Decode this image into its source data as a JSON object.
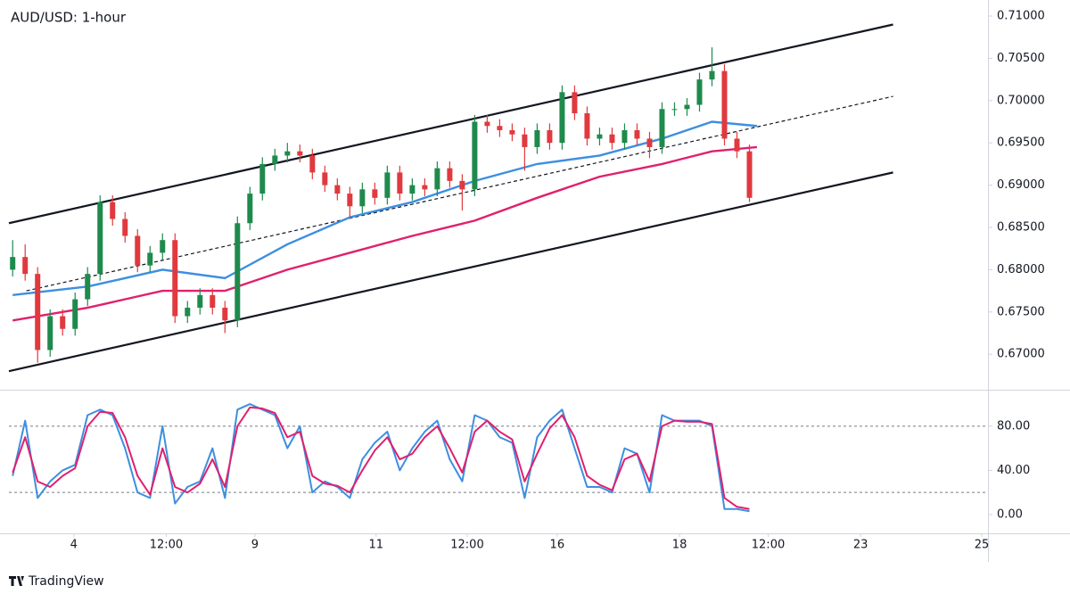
{
  "chart_data": [
    {
      "type": "candlestick",
      "title": "AUD/USD: 1-hour",
      "up_color": "#1e8a4c",
      "down_color": "#e0393e",
      "open": [
        0.68,
        0.6815,
        0.6795,
        0.6705,
        0.6745,
        0.673,
        0.6765,
        0.6795,
        0.688,
        0.686,
        0.684,
        0.6805,
        0.682,
        0.6835,
        0.6745,
        0.6755,
        0.677,
        0.6755,
        0.674,
        0.6855,
        0.689,
        0.6925,
        0.6935,
        0.694,
        0.6935,
        0.6915,
        0.69,
        0.689,
        0.6875,
        0.6895,
        0.6885,
        0.6915,
        0.689,
        0.69,
        0.6895,
        0.692,
        0.6905,
        0.6895,
        0.6975,
        0.697,
        0.6965,
        0.696,
        0.6945,
        0.6965,
        0.695,
        0.701,
        0.6985,
        0.6955,
        0.696,
        0.695,
        0.6965,
        0.6955,
        0.6945,
        0.699,
        0.699,
        0.6995,
        0.7025,
        0.7035,
        0.6955,
        0.694
      ],
      "high": [
        0.6835,
        0.683,
        0.6803,
        0.6753,
        0.6753,
        0.6773,
        0.6803,
        0.6888,
        0.6888,
        0.6868,
        0.6848,
        0.6828,
        0.6843,
        0.6843,
        0.6763,
        0.6778,
        0.6778,
        0.6763,
        0.6863,
        0.6898,
        0.6933,
        0.6943,
        0.695,
        0.6948,
        0.6943,
        0.6923,
        0.6908,
        0.6898,
        0.6903,
        0.6903,
        0.6923,
        0.6923,
        0.6908,
        0.6908,
        0.6928,
        0.6928,
        0.6913,
        0.6983,
        0.6983,
        0.6978,
        0.6973,
        0.6968,
        0.6973,
        0.6973,
        0.7018,
        0.7018,
        0.6993,
        0.6968,
        0.6968,
        0.6973,
        0.6973,
        0.6963,
        0.6998,
        0.6998,
        0.7003,
        0.7033,
        0.7063,
        0.7043,
        0.6963,
        0.6948
      ],
      "low": [
        0.6792,
        0.6787,
        0.669,
        0.6697,
        0.6722,
        0.6722,
        0.6757,
        0.6787,
        0.6852,
        0.6832,
        0.6797,
        0.6797,
        0.6812,
        0.6737,
        0.6737,
        0.6747,
        0.6747,
        0.6725,
        0.6732,
        0.6847,
        0.6882,
        0.6917,
        0.6927,
        0.6927,
        0.6907,
        0.6892,
        0.6882,
        0.6862,
        0.6867,
        0.6877,
        0.6877,
        0.6882,
        0.6882,
        0.6887,
        0.6887,
        0.6897,
        0.687,
        0.6887,
        0.6962,
        0.6957,
        0.6952,
        0.6917,
        0.6937,
        0.6942,
        0.6942,
        0.6977,
        0.6947,
        0.6947,
        0.6942,
        0.6942,
        0.6947,
        0.6932,
        0.6937,
        0.6982,
        0.6982,
        0.6987,
        0.7017,
        0.6947,
        0.6932,
        0.688
      ],
      "close": [
        0.6815,
        0.6795,
        0.6705,
        0.6745,
        0.673,
        0.6765,
        0.6795,
        0.688,
        0.686,
        0.684,
        0.6805,
        0.682,
        0.6835,
        0.6745,
        0.6755,
        0.677,
        0.6755,
        0.674,
        0.6855,
        0.689,
        0.6925,
        0.6935,
        0.694,
        0.6935,
        0.6915,
        0.69,
        0.689,
        0.6875,
        0.6895,
        0.6885,
        0.6915,
        0.689,
        0.69,
        0.6895,
        0.692,
        0.6905,
        0.6895,
        0.6975,
        0.697,
        0.6965,
        0.696,
        0.6945,
        0.6965,
        0.695,
        0.701,
        0.6985,
        0.6955,
        0.696,
        0.695,
        0.6965,
        0.6955,
        0.6945,
        0.699,
        0.699,
        0.6995,
        0.7025,
        0.7035,
        0.6955,
        0.694,
        0.6885
      ],
      "lines": [
        {
          "color": "#3d8fe0",
          "x": [
            0,
            6,
            12,
            17,
            22,
            27,
            32,
            37,
            42,
            47,
            52,
            56,
            59.6
          ],
          "values": [
            0.677,
            0.678,
            0.68,
            0.679,
            0.683,
            0.6862,
            0.688,
            0.6905,
            0.6925,
            0.6935,
            0.6955,
            0.6975,
            0.697
          ]
        },
        {
          "color": "#e0206e",
          "x": [
            0,
            6,
            12,
            17,
            22,
            27,
            32,
            37,
            42,
            47,
            52,
            56,
            59.6
          ],
          "values": [
            0.674,
            0.6755,
            0.6775,
            0.6775,
            0.68,
            0.682,
            0.684,
            0.6858,
            0.6885,
            0.691,
            0.6925,
            0.694,
            0.6945
          ]
        }
      ],
      "trendlines": [
        {
          "x": [
            -0.3,
            70.5
          ],
          "values": [
            0.6855,
            0.709
          ],
          "style": "solid"
        },
        {
          "x": [
            -0.3,
            70.5
          ],
          "values": [
            0.668,
            0.6915
          ],
          "style": "solid"
        },
        {
          "x": [
            1.1,
            70.5
          ],
          "values": [
            0.6775,
            0.7005
          ],
          "style": "dashed"
        }
      ],
      "xlim": [
        -0.3,
        78.1
      ],
      "ylim": [
        0.6658,
        0.7119
      ],
      "yticks": [
        {
          "value": 0.67,
          "label": "0.67000"
        },
        {
          "value": 0.675,
          "label": "0.67500"
        },
        {
          "value": 0.68,
          "label": "0.68000"
        },
        {
          "value": 0.685,
          "label": "0.68500"
        },
        {
          "value": 0.69,
          "label": "0.69000"
        },
        {
          "value": 0.695,
          "label": "0.69500"
        },
        {
          "value": 0.7,
          "label": "0.70000"
        },
        {
          "value": 0.705,
          "label": "0.70500"
        },
        {
          "value": 0.71,
          "label": "0.71000"
        }
      ],
      "grid": false
    },
    {
      "type": "line",
      "series": [
        {
          "color": "#3d8fe0",
          "values": [
            35,
            85,
            15,
            30,
            40,
            45,
            90,
            95,
            90,
            60,
            20,
            15,
            80,
            10,
            25,
            30,
            60,
            15,
            95,
            100,
            95,
            90,
            60,
            80,
            20,
            30,
            25,
            15,
            50,
            65,
            75,
            40,
            60,
            75,
            85,
            50,
            30,
            90,
            85,
            70,
            65,
            15,
            70,
            85,
            95,
            60,
            25,
            25,
            20,
            60,
            55,
            20,
            90,
            85,
            85,
            85,
            80,
            5,
            5,
            3
          ]
        },
        {
          "color": "#e0206e",
          "values": [
            38,
            70,
            30,
            25,
            35,
            42,
            80,
            93,
            92,
            70,
            35,
            18,
            60,
            25,
            20,
            28,
            50,
            25,
            80,
            97,
            96,
            92,
            70,
            75,
            35,
            28,
            26,
            20,
            40,
            58,
            70,
            50,
            55,
            70,
            80,
            60,
            38,
            75,
            85,
            75,
            68,
            30,
            55,
            78,
            90,
            70,
            35,
            27,
            22,
            50,
            55,
            30,
            80,
            85,
            84,
            84,
            82,
            15,
            7,
            5
          ]
        }
      ],
      "levels": [
        80,
        20
      ],
      "xlim": [
        -0.3,
        78.1
      ],
      "xticks": [
        {
          "value": 4.9,
          "label": "4"
        },
        {
          "value": 12.3,
          "label": "12:00"
        },
        {
          "value": 19.4,
          "label": "9"
        },
        {
          "value": 29.1,
          "label": "11"
        },
        {
          "value": 36.4,
          "label": "12:00"
        },
        {
          "value": 43.6,
          "label": "16"
        },
        {
          "value": 53.4,
          "label": "18"
        },
        {
          "value": 60.5,
          "label": "12:00"
        },
        {
          "value": 67.9,
          "label": "23"
        },
        {
          "value": 77.6,
          "label": "25"
        }
      ],
      "ylim": [
        -17,
        113
      ],
      "yticks": [
        {
          "value": 0,
          "label": "0.00"
        },
        {
          "value": 40,
          "label": "40.00"
        },
        {
          "value": 80,
          "label": "80.00"
        }
      ]
    }
  ],
  "branding": "TradingView"
}
